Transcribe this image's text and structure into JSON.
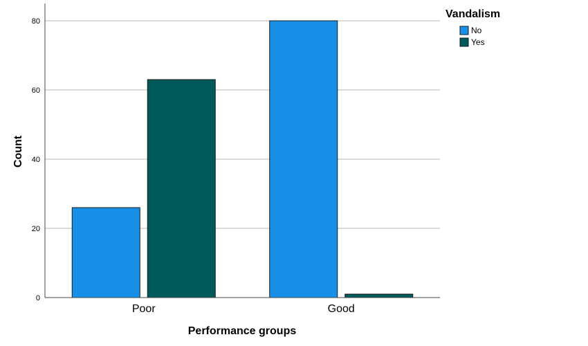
{
  "chart_data": {
    "type": "bar",
    "categories": [
      "Poor",
      "Good"
    ],
    "series": [
      {
        "name": "No",
        "values": [
          26,
          80
        ]
      },
      {
        "name": "Yes",
        "values": [
          63,
          1
        ]
      }
    ],
    "xlabel": "Performance groups",
    "ylabel": "Count",
    "ylim": [
      0,
      84
    ],
    "yticks": [
      0,
      20,
      40,
      60,
      80
    ],
    "grid": true,
    "legend": {
      "title": "Vandalism",
      "position": "top-right"
    }
  },
  "colors": {
    "No": "#1990e8",
    "Yes": "#005a59",
    "grid": "#b9b9b9",
    "axis": "#444444"
  }
}
